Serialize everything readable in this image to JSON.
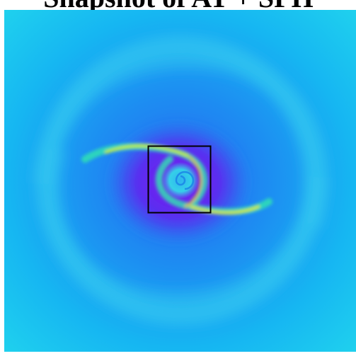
{
  "header": {
    "title": "Snapshot of AT + SPH"
  }
}
